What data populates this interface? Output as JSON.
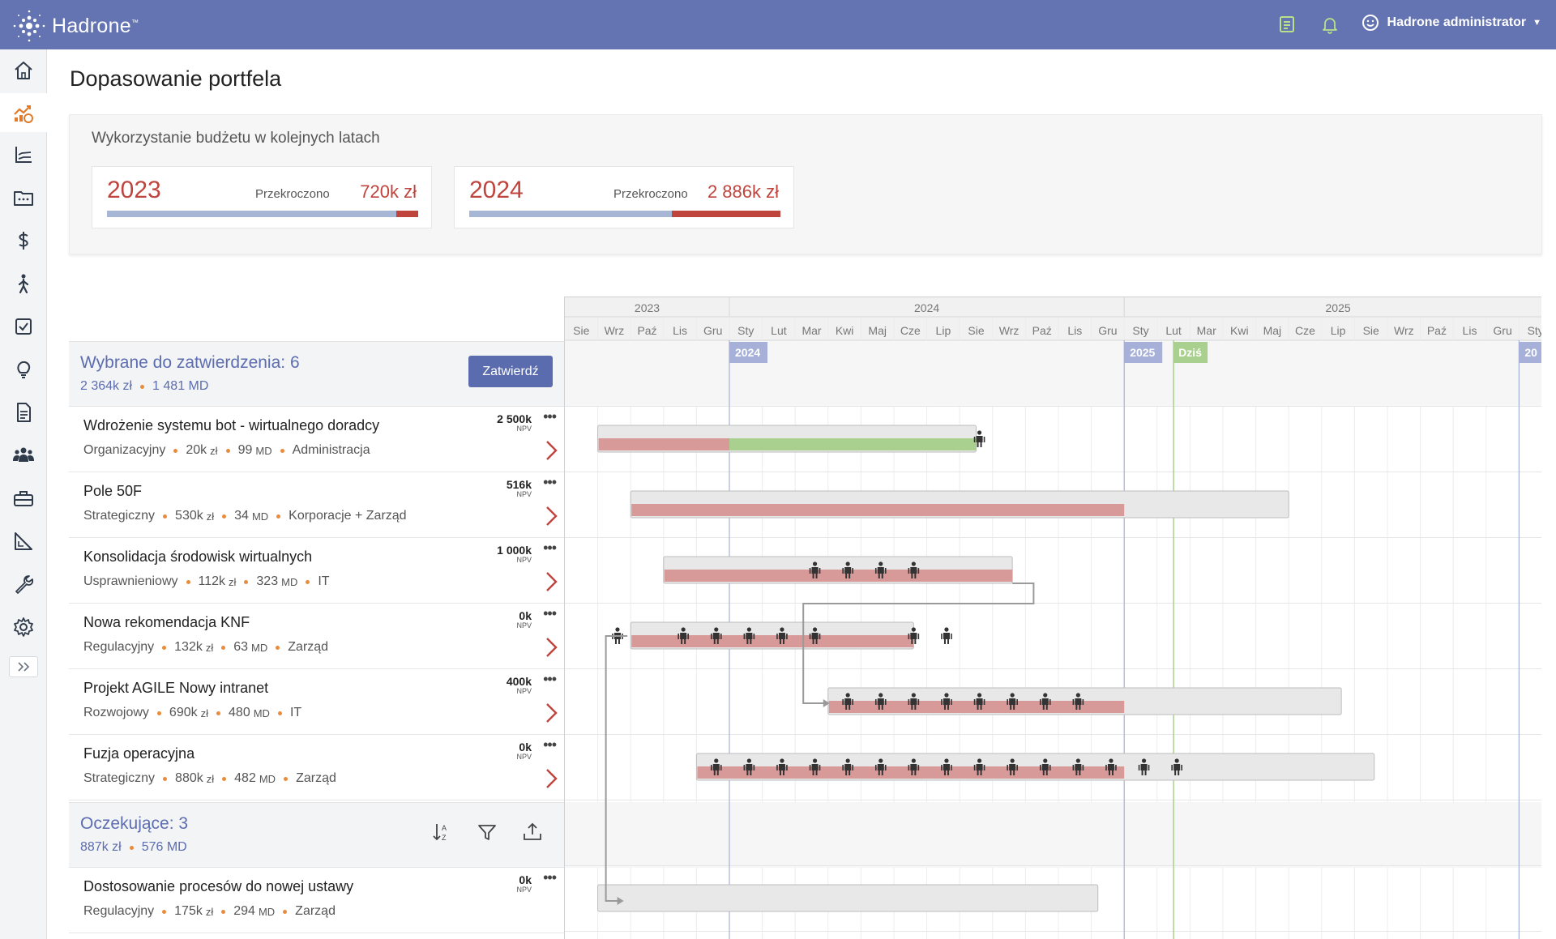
{
  "app": {
    "name": "Hadrone",
    "tm": "™"
  },
  "header": {
    "user_name": "Hadrone administrator"
  },
  "sidebar": {
    "items": [
      {
        "icon": "home-icon"
      },
      {
        "icon": "portfolio-chart-icon",
        "active": true
      },
      {
        "icon": "line-chart-icon"
      },
      {
        "icon": "folder-icon"
      },
      {
        "icon": "dollar-icon"
      },
      {
        "icon": "person-walking-icon"
      },
      {
        "icon": "checkbox-icon"
      },
      {
        "icon": "lightbulb-icon"
      },
      {
        "icon": "document-icon"
      },
      {
        "icon": "team-icon"
      },
      {
        "icon": "toolbox-icon"
      },
      {
        "icon": "ruler-chart-icon"
      },
      {
        "icon": "wrench-icon"
      },
      {
        "icon": "gear-icon"
      }
    ]
  },
  "page": {
    "title": "Dopasowanie portfela"
  },
  "budget": {
    "title": "Wykorzystanie budżetu w kolejnych latach",
    "years": [
      {
        "year": "2023",
        "over_label": "Przekroczono",
        "over_value": "720k zł",
        "over_fraction": 0.07
      },
      {
        "year": "2024",
        "over_label": "Przekroczono",
        "over_value": "2 886k zł",
        "over_fraction": 0.35
      }
    ]
  },
  "selected": {
    "title": "Wybrane do zatwierdzenia: 6",
    "amount": "2 364k zł",
    "md": "1 481 MD",
    "approve_label": "Zatwierdź"
  },
  "pending": {
    "title": "Oczekujące: 3",
    "amount": "887k zł",
    "md": "576 MD"
  },
  "projects": [
    {
      "name": "Wdrożenie systemu bot - wirtualnego doradcy",
      "type": "Organizacyjny",
      "cost": "20k",
      "cost_unit": "zł",
      "md": "99",
      "md_unit": "MD",
      "dept": "Administracja",
      "npv": "2 500k",
      "npv_label": "NPV"
    },
    {
      "name": "Pole 50F",
      "type": "Strategiczny",
      "cost": "530k",
      "cost_unit": "zł",
      "md": "34",
      "md_unit": "MD",
      "dept": "Korporacje + Zarząd",
      "npv": "516k",
      "npv_label": "NPV"
    },
    {
      "name": "Konsolidacja środowisk wirtualnych",
      "type": "Usprawnieniowy",
      "cost": "112k",
      "cost_unit": "zł",
      "md": "323",
      "md_unit": "MD",
      "dept": "IT",
      "npv": "1 000k",
      "npv_label": "NPV"
    },
    {
      "name": "Nowa rekomendacja KNF",
      "type": "Regulacyjny",
      "cost": "132k",
      "cost_unit": "zł",
      "md": "63",
      "md_unit": "MD",
      "dept": "Zarząd",
      "npv": "0k",
      "npv_label": "NPV"
    },
    {
      "name": "Projekt AGILE Nowy intranet",
      "type": "Rozwojowy",
      "cost": "690k",
      "cost_unit": "zł",
      "md": "480",
      "md_unit": "MD",
      "dept": "IT",
      "npv": "400k",
      "npv_label": "NPV"
    },
    {
      "name": "Fuzja operacyjna",
      "type": "Strategiczny",
      "cost": "880k",
      "cost_unit": "zł",
      "md": "482",
      "md_unit": "MD",
      "dept": "Zarząd",
      "npv": "0k",
      "npv_label": "NPV"
    }
  ],
  "pending_projects": [
    {
      "name": "Dostosowanie procesów do nowej ustawy",
      "type": "Regulacyjny",
      "cost": "175k",
      "cost_unit": "zł",
      "md": "294",
      "md_unit": "MD",
      "dept": "Zarząd",
      "npv": "0k",
      "npv_label": "NPV"
    }
  ],
  "timeline": {
    "year_labels": [
      "2023",
      "2024",
      "2025"
    ],
    "months": [
      "Sie",
      "Wrz",
      "Paź",
      "Lis",
      "Gru",
      "Sty",
      "Lut",
      "Mar",
      "Kwi",
      "Maj",
      "Cze",
      "Lip",
      "Sie",
      "Wrz",
      "Paź",
      "Lis",
      "Gru",
      "Sty",
      "Lut",
      "Mar",
      "Kwi",
      "Maj",
      "Cze",
      "Lip",
      "Sie",
      "Wrz",
      "Paź",
      "Lis",
      "Gru",
      "Sty"
    ],
    "year_markers": [
      "2024",
      "2025",
      "20"
    ],
    "today_label": "Dziś",
    "colors": {
      "planned": "#e8e8e8",
      "cost": "#d89a98",
      "progress": "#a9d08e",
      "year_line": "#a6b0d8",
      "today": "#a9d08e"
    },
    "bars": [
      {
        "start": "2023-09",
        "end": "2024-08",
        "cost_to": "2024-01",
        "progress_to": "2024-08",
        "people": [
          "2024-08"
        ]
      },
      {
        "start": "2023-10",
        "end": "2025-05",
        "cost_to": "2025-01",
        "people": []
      },
      {
        "start": "2023-11",
        "end": "2024-09",
        "cost_to": "2024-09",
        "people": [
          "2024-03",
          "2024-04",
          "2024-05",
          "2024-06"
        ]
      },
      {
        "start": "2023-10",
        "end": "2024-06",
        "cost_to": "2024-06",
        "people": [
          "2023-09",
          "2023-11",
          "2023-12",
          "2024-01",
          "2024-02",
          "2024-03",
          "2024-06",
          "2024-07"
        ]
      },
      {
        "start": "2024-04",
        "end": "2025-07",
        "cost_to": "2025-01",
        "people": [
          "2024-04",
          "2024-05",
          "2024-06",
          "2024-07",
          "2024-08",
          "2024-09",
          "2024-10",
          "2024-11"
        ]
      },
      {
        "start": "2023-12",
        "end": "2025-08",
        "cost_to": "2025-01",
        "people": [
          "2023-12",
          "2024-01",
          "2024-02",
          "2024-03",
          "2024-04",
          "2024-05",
          "2024-06",
          "2024-07",
          "2024-08",
          "2024-09",
          "2024-10",
          "2024-11",
          "2024-12",
          "2025-01",
          "2025-02"
        ]
      },
      {
        "start": "2023-09",
        "end": "2024-12",
        "people": []
      }
    ]
  }
}
